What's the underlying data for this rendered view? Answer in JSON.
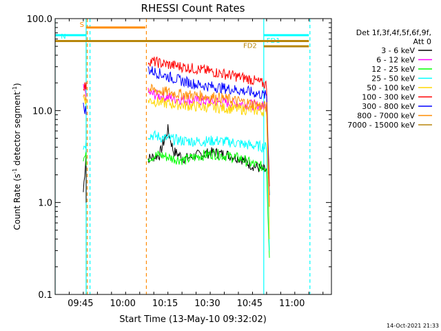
{
  "chart_data": {
    "type": "line",
    "title": "RHESSI Count Rates",
    "xlabel": "Start Time (13-May-10 09:32:02)",
    "ylabel": "Count Rate (s⁻¹ detector segment⁻¹)",
    "ylabel_prefix": "Count Rate (s",
    "ylabel_mid": " detector segment",
    "ylabel_suffix": ")",
    "ylabel_exp": "-1",
    "y_scale": "log",
    "ylim": [
      0.1,
      100
    ],
    "x_range": [
      "09:36",
      "11:14"
    ],
    "x_ticks": [
      "09:45",
      "10:00",
      "10:15",
      "10:30",
      "10:45",
      "11:00"
    ],
    "y_ticks": [
      "0.1",
      "1.0",
      "10.0",
      "100.0"
    ],
    "grid": false,
    "legend_header": [
      "Det 1f,3f,4f,5f,6f,9f,",
      "Att 0"
    ],
    "legend_position": "right",
    "footer_date": "14-Oct-2021 21:33",
    "series": [
      {
        "name": "3 - 6 keV",
        "color": "#000000",
        "x1": [
          "09:46",
          "09:47",
          "09:47"
        ],
        "y1": [
          1.3,
          3.5,
          1.0
        ],
        "x": [
          "10:09",
          "10:13",
          "10:16",
          "10:18",
          "10:22",
          "10:27",
          "10:32",
          "10:37",
          "10:42",
          "10:45",
          "10:48",
          "10:51",
          "10:52"
        ],
        "y": [
          3.0,
          3.3,
          6.2,
          3.6,
          3.0,
          3.3,
          3.5,
          3.3,
          3.0,
          2.6,
          2.4,
          2.2,
          1.5
        ]
      },
      {
        "name": "6 - 12 keV",
        "color": "#ff00ff",
        "x1": [
          "09:46",
          "09:47",
          "09:47"
        ],
        "y1": [
          17,
          16,
          14
        ],
        "x": [
          "10:09",
          "10:15",
          "10:21",
          "10:27",
          "10:33",
          "10:39",
          "10:45",
          "10:51",
          "10:52"
        ],
        "y": [
          15.5,
          14.0,
          13.2,
          12.8,
          12.5,
          12.0,
          11.6,
          11.0,
          1.0
        ]
      },
      {
        "name": "12 - 25 keV",
        "color": "#00ff00",
        "x1": [
          "09:46",
          "09:47",
          "09:47"
        ],
        "y1": [
          3.0,
          3.3,
          2.5
        ],
        "x": [
          "10:09",
          "10:13",
          "10:18",
          "10:22",
          "10:27",
          "10:32",
          "10:37",
          "10:42",
          "10:45",
          "10:48",
          "10:51",
          "10:52"
        ],
        "y": [
          3.1,
          3.3,
          3.0,
          2.9,
          3.2,
          3.4,
          3.2,
          3.0,
          2.7,
          2.5,
          2.4,
          0.25
        ]
      },
      {
        "name": "25 - 50 keV",
        "color": "#00ffff",
        "x1": [
          "09:46",
          "09:47",
          "09:47"
        ],
        "y1": [
          4.0,
          4.5,
          3.5
        ],
        "x": [
          "10:09",
          "10:15",
          "10:21",
          "10:27",
          "10:33",
          "10:39",
          "10:45",
          "10:51",
          "10:52"
        ],
        "y": [
          5.5,
          5.0,
          4.7,
          4.6,
          4.7,
          4.5,
          4.2,
          4.0,
          0.3
        ]
      },
      {
        "name": "50 - 100 keV",
        "color": "#ffd700",
        "x1": [
          "09:46",
          "09:47",
          "09:47"
        ],
        "y1": [
          14,
          13,
          12
        ],
        "x": [
          "10:09",
          "10:15",
          "10:21",
          "10:27",
          "10:33",
          "10:39",
          "10:45",
          "10:51",
          "10:52"
        ],
        "y": [
          13.0,
          12.0,
          11.5,
          11.0,
          10.8,
          10.5,
          10.2,
          9.8,
          0.4
        ]
      },
      {
        "name": "100 - 300 keV",
        "color": "#ff0000",
        "x1": [
          "09:46",
          "09:47",
          "09:47"
        ],
        "y1": [
          19,
          18,
          17
        ],
        "x": [
          "10:09",
          "10:15",
          "10:21",
          "10:27",
          "10:33",
          "10:39",
          "10:45",
          "10:51",
          "10:52"
        ],
        "y": [
          35,
          32,
          30,
          28,
          26,
          24,
          22,
          19,
          1.5
        ]
      },
      {
        "name": "300 - 800 keV",
        "color": "#0000ff",
        "x1": [
          "09:46",
          "09:47",
          "09:47"
        ],
        "y1": [
          11,
          10,
          9
        ],
        "x": [
          "10:09",
          "10:15",
          "10:21",
          "10:27",
          "10:33",
          "10:39",
          "10:45",
          "10:51",
          "10:52"
        ],
        "y": [
          28,
          24,
          21,
          19,
          18,
          17,
          16,
          14.5,
          1.2
        ]
      },
      {
        "name": "800 - 7000 keV",
        "color": "#ff8c00",
        "x1": [
          "09:46",
          "09:47",
          "09:47"
        ],
        "y1": [
          15,
          14,
          13
        ],
        "x": [
          "10:09",
          "10:15",
          "10:21",
          "10:27",
          "10:33",
          "10:39",
          "10:45",
          "10:51",
          "10:52"
        ],
        "y": [
          17,
          16,
          15,
          14.5,
          14,
          13,
          12,
          11,
          0.9
        ]
      },
      {
        "name": "7000 - 15000 keV",
        "color": "#b8860b",
        "x1": [],
        "y1": [],
        "x": [],
        "y": []
      }
    ],
    "annotations": [
      {
        "label": "S",
        "color": "#ff8c00",
        "x_start": "09:47",
        "x_end": "10:08",
        "y": 80
      },
      {
        "label": "N",
        "color": "#00ffff",
        "x_start": "09:36",
        "x_end": "09:47",
        "y": 66
      },
      {
        "label": "FD1",
        "color": "#00ffff",
        "x_start": "10:50",
        "x_end": "11:06",
        "y": 66
      },
      {
        "label": "FD2",
        "color": "#b8860b",
        "x_start": "09:36",
        "x_end": "11:06",
        "y": 57
      },
      {
        "label": "",
        "color": "#b8860b",
        "x_start": "10:50",
        "x_end": "11:06",
        "y": 50
      }
    ],
    "vlines": [
      {
        "x": "09:36",
        "color": "#00ffff",
        "style": "solid"
      },
      {
        "x": "09:47",
        "color": "#00ffff",
        "style": "solid"
      },
      {
        "x": "09:47",
        "color": "#ff8c00",
        "style": "dashed"
      },
      {
        "x": "09:48",
        "color": "#00ffff",
        "style": "dashed"
      },
      {
        "x": "10:08",
        "color": "#ff8c00",
        "style": "dashed"
      },
      {
        "x": "10:50",
        "color": "#00ffff",
        "style": "solid"
      },
      {
        "x": "11:06",
        "color": "#00ffff",
        "style": "dashed"
      }
    ]
  }
}
